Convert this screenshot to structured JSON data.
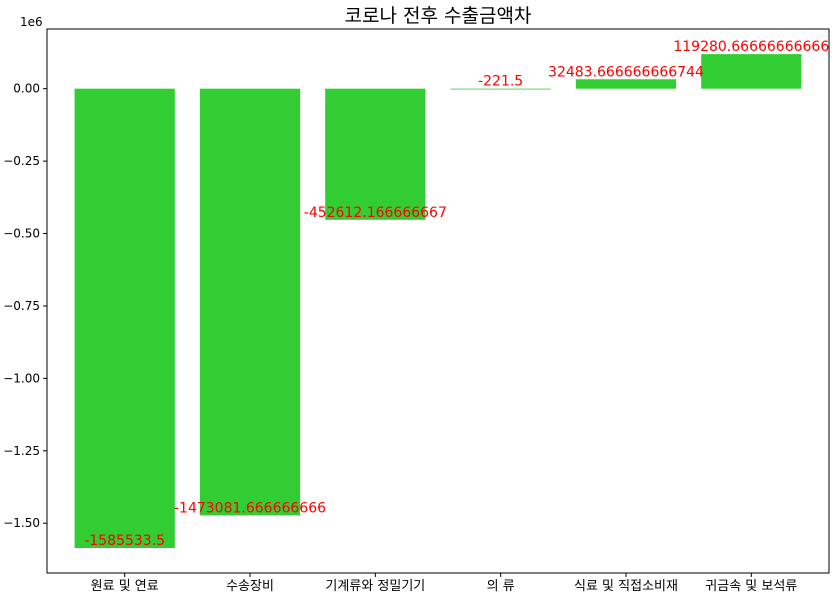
{
  "chart_data": {
    "type": "bar",
    "title": "코로나 전후 수출금액차",
    "xlabel": "",
    "ylabel": "",
    "y_offset_text": "1e6",
    "categories": [
      "원료 및 연료",
      "수송장비",
      "기계류와 정밀기기",
      "의 류",
      "식료 및 직접소비재",
      "귀금속 및 보석류"
    ],
    "values": [
      -1585533.5,
      -1473081.666666666,
      -452612.166666667,
      -221.5,
      32483.666666666744,
      119280.66666666666
    ],
    "data_labels": [
      "-1585533.5",
      "-1473081.666666666",
      "-452612.166666667",
      "-221.5",
      "32483.666666666744",
      "119280.66666666666"
    ],
    "yticks": [
      0,
      -0.25,
      -0.5,
      -0.75,
      -1.0,
      -1.25,
      -1.5
    ],
    "ytick_labels": [
      "0.00",
      "−0.25",
      "−0.50",
      "−0.75",
      "−1.00",
      "−1.25",
      "−1.50"
    ],
    "ylim": [
      -1671774.2,
      206021.4
    ],
    "bar_color": "#32cd32",
    "label_color": "#ff0000",
    "grid": false,
    "legend": "none"
  }
}
